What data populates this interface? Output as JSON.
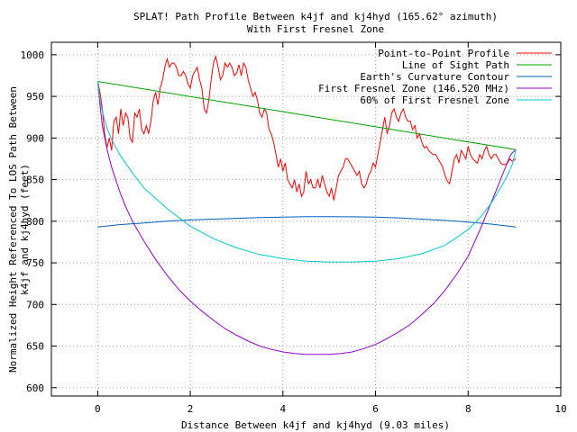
{
  "chart_data": {
    "type": "line",
    "title": "SPLAT! Path Profile Between k4jf and kj4hyd (165.62° azimuth)",
    "subtitle": "With First Fresnel Zone",
    "xlabel": "Distance Between k4jf and kj4hyd (9.03 miles)",
    "ylabel_lines": [
      "Normalized Height Referenced To LOS Path Between",
      "k4jf and kj4hyd (feet)"
    ],
    "xlim": [
      -1,
      10
    ],
    "ylim": [
      590,
      1015
    ],
    "xticks": [
      0,
      2,
      4,
      6,
      8,
      10
    ],
    "yticks": [
      600,
      650,
      700,
      750,
      800,
      850,
      900,
      950,
      1000
    ],
    "grid": true,
    "legend_position": "top-right",
    "series": [
      {
        "name": "Point-to-Point Profile",
        "color": "#ff0000",
        "x": [
          0.0,
          0.05,
          0.1,
          0.15,
          0.2,
          0.25,
          0.3,
          0.35,
          0.4,
          0.45,
          0.5,
          0.55,
          0.6,
          0.65,
          0.7,
          0.75,
          0.8,
          0.85,
          0.9,
          0.95,
          1.0,
          1.05,
          1.1,
          1.15,
          1.2,
          1.25,
          1.3,
          1.35,
          1.4,
          1.45,
          1.5,
          1.55,
          1.6,
          1.65,
          1.7,
          1.75,
          1.8,
          1.85,
          1.9,
          1.95,
          2.0,
          2.05,
          2.1,
          2.15,
          2.2,
          2.25,
          2.3,
          2.35,
          2.4,
          2.45,
          2.5,
          2.55,
          2.6,
          2.65,
          2.7,
          2.75,
          2.8,
          2.85,
          2.9,
          2.95,
          3.0,
          3.05,
          3.1,
          3.15,
          3.2,
          3.25,
          3.3,
          3.35,
          3.4,
          3.45,
          3.5,
          3.55,
          3.6,
          3.65,
          3.7,
          3.75,
          3.8,
          3.85,
          3.9,
          3.95,
          4.0,
          4.05,
          4.1,
          4.15,
          4.2,
          4.25,
          4.3,
          4.35,
          4.4,
          4.45,
          4.5,
          4.55,
          4.6,
          4.65,
          4.7,
          4.75,
          4.8,
          4.85,
          4.9,
          4.95,
          5.0,
          5.05,
          5.1,
          5.15,
          5.2,
          5.25,
          5.3,
          5.35,
          5.4,
          5.45,
          5.5,
          5.55,
          5.6,
          5.65,
          5.7,
          5.75,
          5.8,
          5.85,
          5.9,
          5.95,
          6.0,
          6.05,
          6.1,
          6.15,
          6.2,
          6.25,
          6.3,
          6.35,
          6.4,
          6.45,
          6.5,
          6.55,
          6.6,
          6.65,
          6.7,
          6.75,
          6.8,
          6.85,
          6.9,
          6.95,
          7.0,
          7.05,
          7.1,
          7.15,
          7.2,
          7.25,
          7.3,
          7.35,
          7.4,
          7.45,
          7.5,
          7.55,
          7.6,
          7.65,
          7.7,
          7.75,
          7.8,
          7.85,
          7.9,
          7.95,
          8.0,
          8.05,
          8.1,
          8.15,
          8.2,
          8.25,
          8.3,
          8.35,
          8.4,
          8.45,
          8.5,
          8.55,
          8.6,
          8.65,
          8.7,
          8.75,
          8.8,
          8.85,
          8.9,
          8.95,
          9.03
        ],
        "y": [
          968,
          955,
          935,
          905,
          888,
          900,
          885,
          920,
          925,
          905,
          935,
          915,
          930,
          925,
          900,
          895,
          930,
          925,
          935,
          910,
          905,
          915,
          905,
          920,
          945,
          955,
          940,
          960,
          970,
          985,
          995,
          985,
          990,
          990,
          985,
          975,
          975,
          980,
          975,
          965,
          960,
          975,
          980,
          985,
          970,
          960,
          935,
          930,
          945,
          970,
          990,
          998,
          985,
          970,
          975,
          990,
          985,
          990,
          985,
          975,
          978,
          988,
          975,
          990,
          985,
          970,
          960,
          950,
          955,
          945,
          930,
          925,
          935,
          930,
          910,
          905,
          895,
          880,
          865,
          875,
          860,
          870,
          850,
          845,
          840,
          850,
          835,
          845,
          830,
          835,
          860,
          845,
          850,
          840,
          840,
          850,
          840,
          855,
          845,
          835,
          830,
          840,
          825,
          840,
          855,
          860,
          865,
          875,
          875,
          870,
          865,
          860,
          855,
          860,
          845,
          840,
          845,
          855,
          860,
          870,
          865,
          880,
          895,
          910,
          925,
          905,
          915,
          930,
          935,
          925,
          920,
          930,
          935,
          925,
          920,
          920,
          910,
          915,
          900,
          905,
          895,
          888,
          890,
          885,
          882,
          880,
          880,
          875,
          870,
          865,
          855,
          848,
          845,
          860,
          875,
          880,
          870,
          885,
          880,
          875,
          890,
          880,
          875,
          872,
          870,
          880,
          875,
          885,
          890,
          880,
          875,
          880,
          880,
          875,
          870,
          868,
          868,
          870,
          875,
          872,
          875
        ]
      },
      {
        "name": "Line of Sight Path",
        "color": "#00a000",
        "x": [
          0,
          9.03
        ],
        "y": [
          968,
          886
        ]
      },
      {
        "name": "Earth's Curvature Contour",
        "color": "#0060c0",
        "x": [
          0,
          0.5,
          1.0,
          1.5,
          2.0,
          2.5,
          3.0,
          3.5,
          4.0,
          4.5,
          5.0,
          5.5,
          6.0,
          6.5,
          7.0,
          7.5,
          8.0,
          8.5,
          9.03
        ],
        "y": [
          793,
          796,
          798,
          800,
          801.5,
          802.5,
          803.5,
          804.5,
          805,
          805.5,
          805.5,
          805.3,
          805,
          804,
          802.5,
          801,
          799,
          796.5,
          793
        ]
      },
      {
        "name": "First Fresnel Zone (146.520 MHz)",
        "color": "#9400d3",
        "x": [
          0,
          0.05,
          0.1,
          0.2,
          0.3,
          0.4,
          0.5,
          0.6,
          0.75,
          1.0,
          1.25,
          1.5,
          1.75,
          2.0,
          2.25,
          2.5,
          2.75,
          3.0,
          3.25,
          3.5,
          3.75,
          4.0,
          4.25,
          4.5,
          4.75,
          5.0,
          5.25,
          5.5,
          5.75,
          6.0,
          6.25,
          6.5,
          6.75,
          7.0,
          7.25,
          7.5,
          7.75,
          8.0,
          8.25,
          8.45,
          8.6,
          8.7,
          8.8,
          8.9,
          8.95,
          9.03
        ],
        "y": [
          968,
          940,
          915,
          887,
          865,
          848,
          832,
          818,
          800,
          776,
          754,
          735,
          718,
          704,
          692,
          681,
          671,
          663,
          656,
          650,
          646,
          643,
          641,
          640,
          640,
          640,
          641,
          643,
          647,
          652,
          659,
          667,
          676,
          688,
          701,
          717,
          736,
          758,
          789,
          816,
          836,
          850,
          864,
          878,
          882,
          886
        ]
      },
      {
        "name": "60% of First Fresnel Zone",
        "color": "#00cccc",
        "x": [
          0,
          0.05,
          0.1,
          0.2,
          0.3,
          0.5,
          0.75,
          1.0,
          1.5,
          2.0,
          2.5,
          3.0,
          3.5,
          4.0,
          4.5,
          5.0,
          5.5,
          6.0,
          6.5,
          7.0,
          7.5,
          8.0,
          8.3,
          8.5,
          8.7,
          8.85,
          8.95,
          9.03
        ],
        "y": [
          968,
          946,
          932,
          912,
          898,
          878,
          858,
          840,
          815,
          794,
          779,
          768,
          760,
          755,
          752,
          751,
          751,
          752,
          755,
          761,
          771,
          790,
          807,
          822,
          840,
          855,
          868,
          886
        ]
      }
    ]
  }
}
